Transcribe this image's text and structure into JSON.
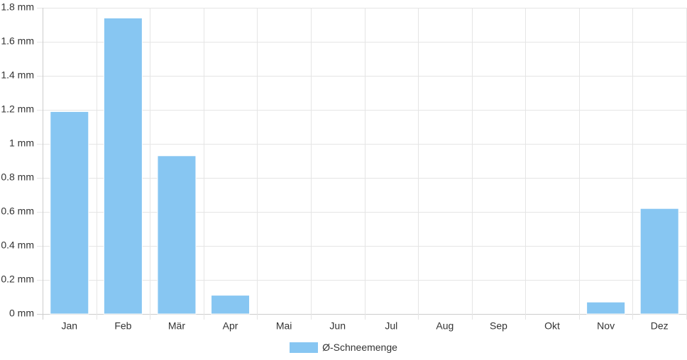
{
  "chart_data": {
    "type": "bar",
    "categories": [
      "Jan",
      "Feb",
      "Mär",
      "Apr",
      "Mai",
      "Jun",
      "Jul",
      "Aug",
      "Sep",
      "Okt",
      "Nov",
      "Dez"
    ],
    "series": [
      {
        "name": "Ø-Schneemenge",
        "values": [
          1.19,
          1.74,
          0.93,
          0.11,
          0,
          0,
          0,
          0,
          0,
          0,
          0.07,
          0.62
        ]
      }
    ],
    "ylim": [
      0,
      1.8
    ],
    "yticks": [
      0,
      0.2,
      0.4,
      0.6,
      0.8,
      1,
      1.2,
      1.4,
      1.6,
      1.8
    ],
    "y_unit": "mm",
    "title": "",
    "xlabel": "",
    "ylabel": "",
    "grid": true,
    "legend_position": "bottom",
    "colors": {
      "bar": "#87c6f2",
      "grid": "#e5e5e5",
      "axis": "#cccccc"
    }
  }
}
